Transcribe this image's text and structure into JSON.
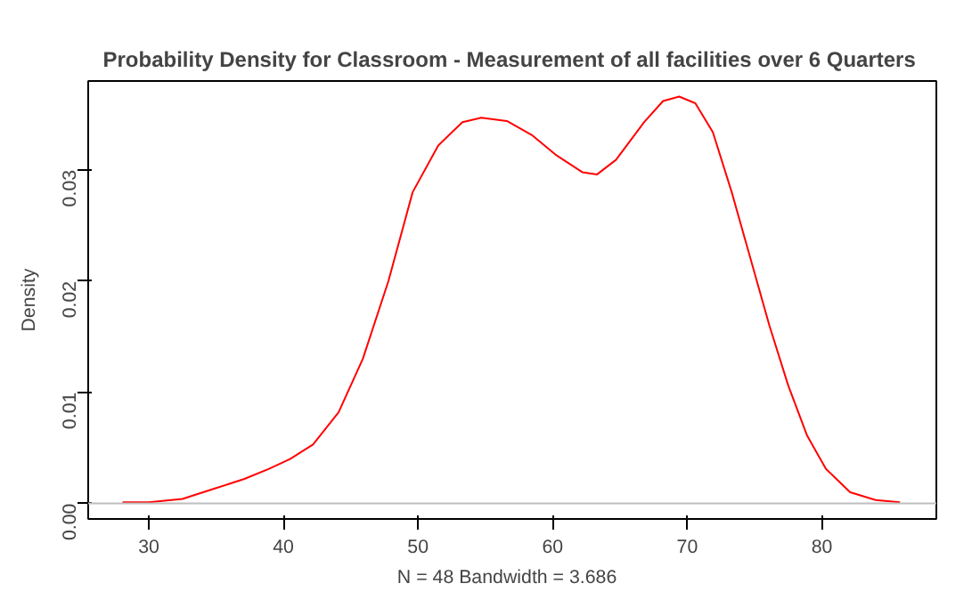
{
  "chart_data": {
    "type": "line",
    "title": "Probability Density for  Classroom - Measurement of all facilities over 6 Quarters",
    "xlabel": "N = 48   Bandwidth = 3.686",
    "ylabel": "Density",
    "x": [
      28.05,
      30,
      32.5,
      34.8,
      37.1,
      38.9,
      40.5,
      42.2,
      44.1,
      45.9,
      47.8,
      49.6,
      51.5,
      53.3,
      54.7,
      56.6,
      58.5,
      60.3,
      62.2,
      63.3,
      64.7,
      66.8,
      68.2,
      69.4,
      70.6,
      71.9,
      73.3,
      74.7,
      76.1,
      77.5,
      78.9,
      80.3,
      82.1,
      84,
      85.8
    ],
    "series": [
      {
        "color": "#ff0000",
        "values": [
          0.0001,
          0.0001,
          0.0004,
          0.0013,
          0.0022,
          0.0031,
          0.004,
          0.0053,
          0.0082,
          0.013,
          0.02,
          0.028,
          0.0322,
          0.0343,
          0.0347,
          0.0344,
          0.0331,
          0.0313,
          0.0298,
          0.0296,
          0.0309,
          0.0343,
          0.0362,
          0.0366,
          0.036,
          0.0334,
          0.028,
          0.022,
          0.016,
          0.0106,
          0.0061,
          0.0031,
          0.001,
          0.0003,
          0.0001
        ]
      }
    ],
    "xlim": [
      25.5,
      88.5
    ],
    "ylim": [
      -0.0014,
      0.038
    ],
    "xticks": [
      30,
      40,
      50,
      60,
      70,
      80
    ],
    "yticks": [
      {
        "value": 0,
        "label": "0.00"
      },
      {
        "value": 0.01,
        "label": "0.01"
      },
      {
        "value": 0.02,
        "label": "0.02"
      },
      {
        "value": 0.03,
        "label": "0.03"
      }
    ],
    "ref_lines": [
      {
        "axis": "y",
        "value": 0,
        "color": "#bebebe"
      }
    ],
    "grid": false,
    "marker": "none",
    "line_style": "solid"
  }
}
